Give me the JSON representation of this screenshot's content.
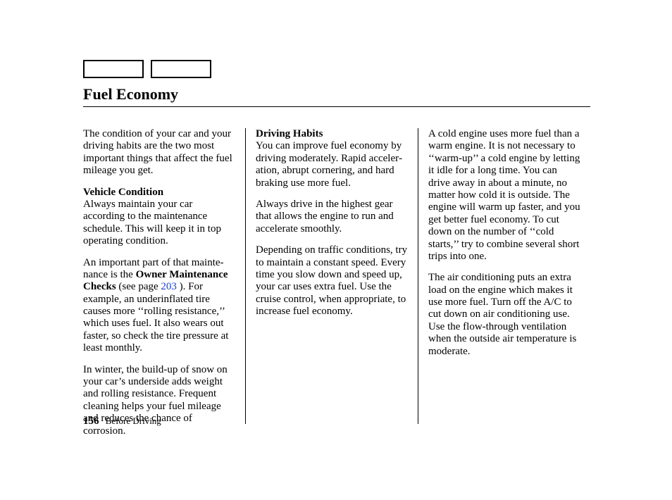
{
  "title": "Fuel Economy",
  "page_ref_link": "203",
  "footer": {
    "page_number": "156",
    "section": "Before Driving"
  },
  "col1": {
    "intro": "The condition of your car and your driving habits are the two most important things that affect the fuel mileage you get.",
    "head1": "Vehicle Condition",
    "p1": "Always maintain your car according to the maintenance schedule. This will keep it in top operating condition.",
    "p2_a": "An important part of that mainte­nance is the ",
    "p2_bold": "Owner Maintenance Checks",
    "p2_b": " (see page ",
    "p2_c": " ). For example, an underinflated tire causes more ‘‘rolling resistance,’’ which uses fuel. It also wears out faster, so check the tire pressure at least monthly.",
    "p3": "In winter, the build-up of snow on your car’s underside adds weight and rolling resistance. Frequent cleaning helps your fuel mileage and reduces the chance of corrosion."
  },
  "col2": {
    "head1": "Driving Habits",
    "p1": "You can improve fuel economy by driving moderately. Rapid acceler­ation, abrupt cornering, and hard braking use more fuel.",
    "p2": "Always drive in the highest gear that allows the engine to run and acceler­ate smoothly.",
    "p3": "Depending on traffic conditions, try to maintain a constant speed. Every time you slow down and speed up, your car uses extra fuel. Use the cruise control, when appropriate, to increase fuel economy."
  },
  "col3": {
    "p1": "A cold engine uses more fuel than a warm engine. It is not necessary to ‘‘warm-up’’ a cold engine by letting it idle for a long time. You can drive away in about a minute, no matter how cold it is outside. The engine will warm up faster, and you get better fuel economy. To cut down on the number of ‘‘cold starts,’’ try to combine several short trips into one.",
    "p2": "The air conditioning puts an extra load on the engine which makes it use more fuel. Turn off the A/C to cut down on air conditioning use. Use the flow-through ventilation when the outside air temperature is moderate."
  }
}
